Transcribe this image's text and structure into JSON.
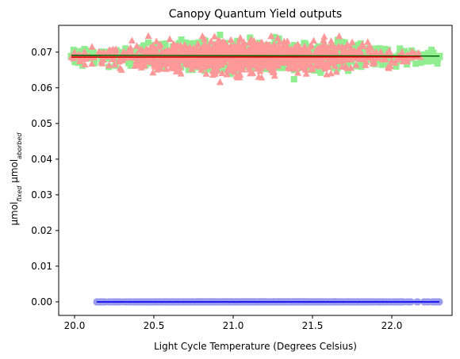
{
  "chart_data": {
    "type": "scatter",
    "title": "Canopy Quantum Yield outputs",
    "xlabel": "Light Cycle Temperature (Degrees Celsius)",
    "ylabel": {
      "base1": "µmol",
      "sub1": "fixed",
      "base2": " µmol",
      "sub2": "aborbed"
    },
    "xlim": [
      19.9,
      22.38
    ],
    "ylim": [
      -0.0038,
      0.0775
    ],
    "x_ticks": [
      20.0,
      20.5,
      21.0,
      21.5,
      22.0
    ],
    "x_tick_labels": [
      "20.0",
      "20.5",
      "21.0",
      "21.5",
      "22.0"
    ],
    "y_ticks": [
      0.0,
      0.01,
      0.02,
      0.03,
      0.04,
      0.05,
      0.06,
      0.07
    ],
    "y_tick_labels": [
      "0.00",
      "0.01",
      "0.02",
      "0.03",
      "0.04",
      "0.05",
      "0.06",
      "0.07"
    ],
    "grid": false,
    "legend": "none",
    "series": [
      {
        "marker": "square",
        "color": "#90ee90",
        "x_range": [
          19.98,
          22.3
        ],
        "y_center": 0.0688,
        "y_spread": 0.0042,
        "fit_line": {
          "color": "#006400",
          "x": [
            19.98,
            22.3
          ],
          "y": [
            0.0691,
            0.0689
          ]
        }
      },
      {
        "marker": "triangle",
        "color": "#ff9999",
        "x_range": [
          19.98,
          22.18
        ],
        "y_center": 0.0686,
        "y_spread": 0.0048,
        "fit_line": {
          "color": "#dd0000",
          "x": [
            19.98,
            22.18
          ],
          "y": [
            0.0686,
            0.0687
          ]
        }
      },
      {
        "marker": "circle",
        "color": "#9999ee",
        "x_range": [
          20.14,
          22.3
        ],
        "y_center": 0.0,
        "y_spread": 0.0,
        "fit_line": {
          "color": "#0000ee",
          "x": [
            20.14,
            22.3
          ],
          "y": [
            0.0,
            0.0
          ]
        }
      }
    ]
  }
}
